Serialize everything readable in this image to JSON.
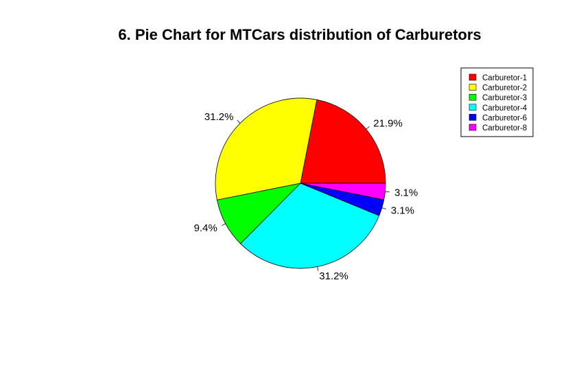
{
  "chart_data": {
    "type": "pie",
    "title": "6. Pie Chart for MTCars distribution of Carburetors",
    "legend_position": "top-right",
    "categories": [
      "Carburetor-1",
      "Carburetor-2",
      "Carburetor-3",
      "Carburetor-4",
      "Carburetor-6",
      "Carburetor-8"
    ],
    "values": [
      21.9,
      31.2,
      9.4,
      31.2,
      3.1,
      3.1
    ],
    "labels": [
      "21.9%",
      "31.2%",
      "9.4%",
      "31.2%",
      "3.1%",
      "3.1%"
    ],
    "colors": [
      "#ff0000",
      "#ffff00",
      "#00ff00",
      "#00ffff",
      "#0000ff",
      "#ff00ff"
    ],
    "direction": "counterclockwise",
    "start_angle_deg": 0
  }
}
